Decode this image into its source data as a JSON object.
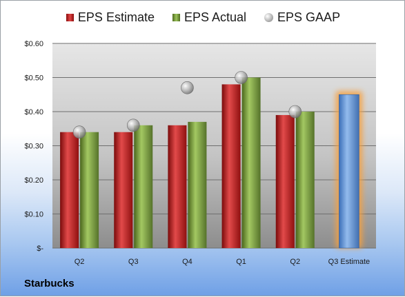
{
  "chart_data": {
    "type": "bar",
    "categories": [
      "Q2",
      "Q3",
      "Q4",
      "Q1",
      "Q2",
      "Q3 Estimate"
    ],
    "series": [
      {
        "name": "EPS Estimate",
        "values": [
          0.34,
          0.34,
          0.36,
          0.48,
          0.39,
          0.45
        ],
        "color": "#c62828"
      },
      {
        "name": "EPS Actual",
        "values": [
          0.34,
          0.36,
          0.37,
          0.5,
          0.4,
          null
        ],
        "color": "#7fa543"
      },
      {
        "name": "EPS GAAP",
        "values": [
          0.34,
          0.36,
          0.47,
          0.5,
          0.4,
          null
        ],
        "color": "#a8a8a8"
      }
    ],
    "highlighted_category": "Q3 Estimate",
    "highlight_color": "#5b8fd6",
    "glow_color": "#f5a040",
    "ylim": [
      0,
      0.6
    ],
    "yticks": [
      0,
      0.1,
      0.2,
      0.3,
      0.4,
      0.5,
      0.6
    ],
    "ytick_labels": [
      "$-",
      "$0.10",
      "$0.20",
      "$0.30",
      "$0.40",
      "$0.50",
      "$0.60"
    ],
    "grid": true,
    "legend_position": "top",
    "xlabel": "",
    "ylabel": ""
  },
  "company": "Starbucks"
}
